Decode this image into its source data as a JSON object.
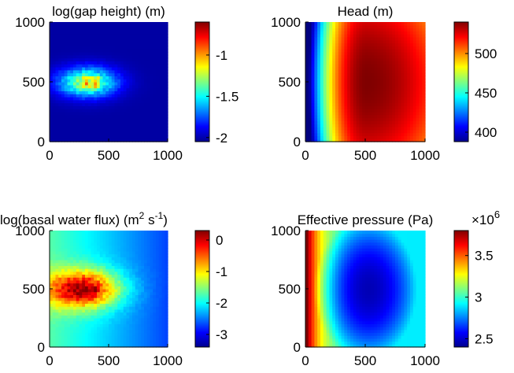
{
  "colors": {
    "jet": [
      "#00008f",
      "#0000ff",
      "#00ffff",
      "#ffff00",
      "#ff0000",
      "#800000"
    ],
    "axis": "#000000",
    "background": "#ffffff"
  },
  "chart_data": [
    {
      "type": "heatmap",
      "title": "log(gap height) (m)",
      "xlabel": "",
      "ylabel": "",
      "xlim": [
        0,
        1000
      ],
      "ylim": [
        0,
        1000
      ],
      "xticks": [
        "0",
        "500",
        "1000"
      ],
      "yticks": [
        "0",
        "500",
        "1000"
      ],
      "field": "gap",
      "colorbar": {
        "min": -2.05,
        "max": -0.6,
        "ticks": [
          -2,
          -1.5,
          -1
        ],
        "tick_labels": [
          "-2",
          "-1.5",
          "-1"
        ],
        "multiplier": ""
      },
      "description_values": {
        "background": -2.0,
        "max_near_source": -0.6
      }
    },
    {
      "type": "heatmap",
      "title": "Head (m)",
      "xlabel": "",
      "ylabel": "",
      "xlim": [
        0,
        1000
      ],
      "ylim": [
        0,
        1000
      ],
      "xticks": [
        "0",
        "500",
        "1000"
      ],
      "yticks": [
        "0",
        "500",
        "1000"
      ],
      "field": "head",
      "colorbar": {
        "min": 388,
        "max": 540,
        "ticks": [
          400,
          450,
          500
        ],
        "tick_labels": [
          "400",
          "450",
          "500"
        ],
        "multiplier": ""
      },
      "description_values": {
        "min_at_left_edge": 390,
        "max_at_center": 540
      }
    },
    {
      "type": "heatmap",
      "title": "log(basal water flux) (m",
      "title_sup1": "2",
      "title_mid": " s",
      "title_sup2": "-1",
      "title_end": ")",
      "xlabel": "",
      "ylabel": "",
      "xlim": [
        0,
        1000
      ],
      "ylim": [
        0,
        1000
      ],
      "xticks": [
        "0",
        "500",
        "1000"
      ],
      "yticks": [
        "0",
        "500",
        "1000"
      ],
      "field": "flux",
      "colorbar": {
        "min": -3.4,
        "max": 0.3,
        "ticks": [
          -3,
          -2,
          -1,
          0
        ],
        "tick_labels": [
          "-3",
          "-2",
          "-1",
          "0"
        ],
        "multiplier": ""
      },
      "description_values": {
        "min_right": -2.7,
        "max_near_source": 0.3
      }
    },
    {
      "type": "heatmap",
      "title": "Effective pressure (Pa)",
      "xlabel": "",
      "ylabel": "",
      "xlim": [
        0,
        1000
      ],
      "ylim": [
        0,
        1000
      ],
      "xticks": [
        "0",
        "500",
        "1000"
      ],
      "yticks": [
        "0",
        "500",
        "1000"
      ],
      "field": "pressure",
      "colorbar": {
        "min": 2.4,
        "max": 3.8,
        "ticks": [
          2.5,
          3,
          3.5
        ],
        "tick_labels": [
          "2.5",
          "3",
          "3.5"
        ],
        "multiplier": "×10",
        "multiplier_exp": "6"
      },
      "description_values": {
        "min_at_center": 2.45,
        "max_at_left_edge": 3.8
      }
    }
  ]
}
